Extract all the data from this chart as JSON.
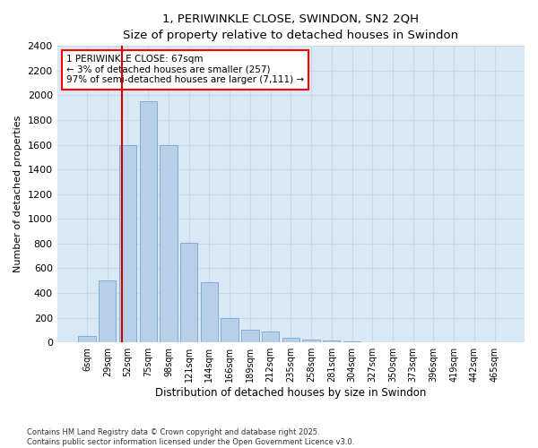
{
  "title": "1, PERIWINKLE CLOSE, SWINDON, SN2 2QH",
  "subtitle": "Size of property relative to detached houses in Swindon",
  "xlabel": "Distribution of detached houses by size in Swindon",
  "ylabel": "Number of detached properties",
  "footer_line1": "Contains HM Land Registry data © Crown copyright and database right 2025.",
  "footer_line2": "Contains public sector information licensed under the Open Government Licence v3.0.",
  "bar_labels": [
    "6sqm",
    "29sqm",
    "52sqm",
    "75sqm",
    "98sqm",
    "121sqm",
    "144sqm",
    "166sqm",
    "189sqm",
    "212sqm",
    "235sqm",
    "258sqm",
    "281sqm",
    "304sqm",
    "327sqm",
    "350sqm",
    "373sqm",
    "396sqm",
    "419sqm",
    "442sqm",
    "465sqm"
  ],
  "bar_values": [
    50,
    500,
    1600,
    1950,
    1600,
    810,
    490,
    200,
    100,
    90,
    35,
    20,
    15,
    10,
    5,
    5,
    2,
    2,
    1,
    0,
    5
  ],
  "bar_color": "#b8cfe8",
  "bar_edge_color": "#6699cc",
  "grid_color": "#c8d8ec",
  "background_color": "#d8e8f4",
  "annotation_text": "1 PERIWINKLE CLOSE: 67sqm\n← 3% of detached houses are smaller (257)\n97% of semi-detached houses are larger (7,111) →",
  "vline_x": 1.72,
  "vline_color": "#cc0000",
  "ylim": [
    0,
    2400
  ],
  "yticks": [
    0,
    200,
    400,
    600,
    800,
    1000,
    1200,
    1400,
    1600,
    1800,
    2000,
    2200,
    2400
  ]
}
